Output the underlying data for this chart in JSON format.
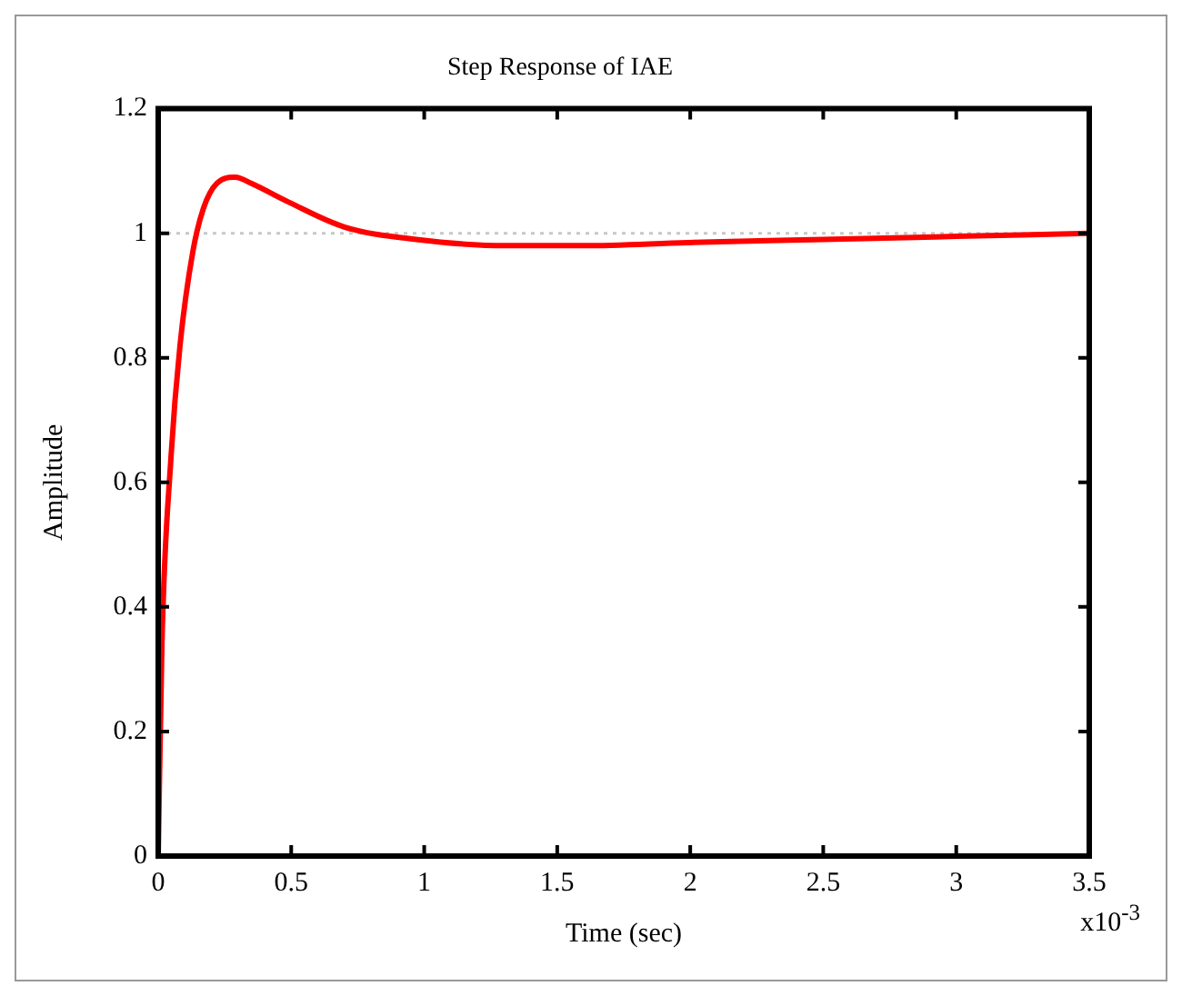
{
  "chart_data": {
    "type": "line",
    "title": "Step Response of IAE",
    "xlabel": "Time (sec)",
    "ylabel": "Amplitude",
    "annotations": [
      "x10$^{-3}$"
    ],
    "series": [
      {
        "color": "#ff0000",
        "x": [
          0,
          0.014,
          0.048,
          0.082,
          0.13,
          0.17,
          0.22,
          0.29,
          0.35,
          0.49,
          0.7,
          0.97,
          1.31,
          1.6,
          1.99,
          2.5,
          3.0,
          3.5
        ],
        "values": [
          0,
          0.34,
          0.64,
          0.82,
          0.97,
          1.04,
          1.08,
          1.09,
          1.08,
          1.05,
          1.01,
          0.99,
          0.98,
          0.98,
          0.985,
          0.99,
          0.995,
          1.0
        ]
      }
    ],
    "ref_lines": [
      {
        "axis": "y",
        "value": 1,
        "color": "#c8c8c8",
        "line_style": "dotted"
      }
    ],
    "xlim": [
      0,
      3.5
    ],
    "xticks": [
      0,
      0.5,
      1,
      1.5,
      2,
      2.5,
      3,
      3.5
    ],
    "ylim": [
      0,
      1.2
    ],
    "yticks": [
      0,
      0.2,
      0.4,
      0.6,
      0.8,
      1,
      1.2
    ],
    "grid": false,
    "legend": false,
    "marker": "none",
    "line_style": "solid"
  }
}
